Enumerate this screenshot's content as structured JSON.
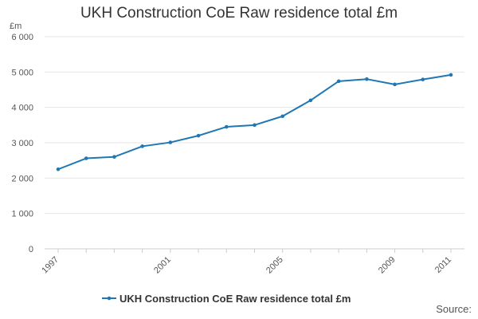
{
  "chart_data": {
    "type": "line",
    "title": "UKH Construction CoE Raw residence total £m",
    "ylabel": "£m",
    "xlabel": "",
    "ylim": [
      0,
      6000
    ],
    "yticks": [
      {
        "value": 0,
        "label": "0"
      },
      {
        "value": 1000,
        "label": "1 000"
      },
      {
        "value": 2000,
        "label": "2 000"
      },
      {
        "value": 3000,
        "label": "3 000"
      },
      {
        "value": 4000,
        "label": "4 000"
      },
      {
        "value": 5000,
        "label": "5 000"
      },
      {
        "value": 6000,
        "label": "6 000"
      }
    ],
    "xlim": [
      1997,
      2011
    ],
    "xticks": [
      "1997",
      "2001",
      "2005",
      "2009",
      "2011"
    ],
    "grid": true,
    "legend_position": "bottom",
    "series": [
      {
        "name": "UKH Construction CoE Raw residence total £m",
        "color": "#1f77b4",
        "x": [
          1997,
          1998,
          1999,
          2000,
          2001,
          2002,
          2003,
          2004,
          2005,
          2006,
          2007,
          2008,
          2009,
          2010,
          2011
        ],
        "values": [
          2250,
          2560,
          2600,
          2900,
          3010,
          3200,
          3450,
          3500,
          3750,
          4200,
          4740,
          4800,
          4650,
          4790,
          4920
        ]
      }
    ]
  },
  "source_label": "Source:"
}
